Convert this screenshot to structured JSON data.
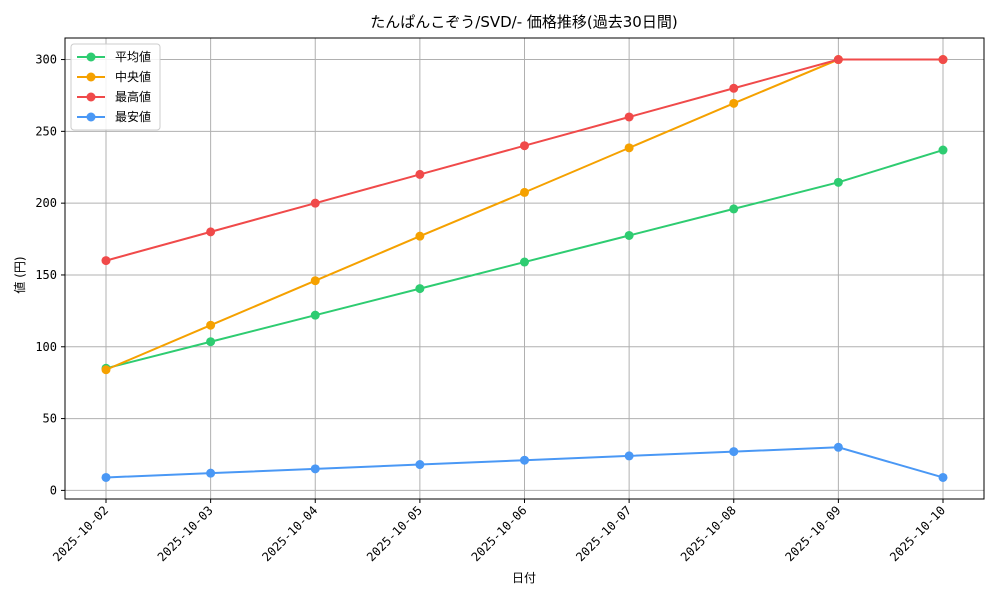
{
  "chart_data": {
    "type": "line",
    "title": "たんぱんこぞう/SVD/- 価格推移(過去30日間)",
    "xlabel": "日付",
    "ylabel": "値 (円)",
    "x": [
      "2025-10-02",
      "2025-10-03",
      "2025-10-04",
      "2025-10-05",
      "2025-10-06",
      "2025-10-07",
      "2025-10-08",
      "2025-10-09",
      "2025-10-10"
    ],
    "ylim": [
      -6,
      315
    ],
    "yticks": [
      0,
      50,
      100,
      150,
      200,
      250,
      300
    ],
    "grid": true,
    "legend_position": "top-left",
    "series": [
      {
        "name": "平均値",
        "color": "#2ecc71",
        "values": [
          85,
          103.5,
          122,
          140.5,
          159,
          177.5,
          196,
          214.5,
          237
        ]
      },
      {
        "name": "中央値",
        "color": "#f5a100",
        "values": [
          84,
          115,
          146,
          177,
          207.5,
          238.5,
          269.5,
          300,
          300
        ]
      },
      {
        "name": "最高値",
        "color": "#f04a4a",
        "values": [
          160,
          180,
          200,
          220,
          240,
          260,
          280,
          300,
          300
        ]
      },
      {
        "name": "最安値",
        "color": "#4a98f5",
        "values": [
          9,
          12,
          15,
          18,
          21,
          24,
          27,
          30,
          9
        ]
      }
    ]
  }
}
